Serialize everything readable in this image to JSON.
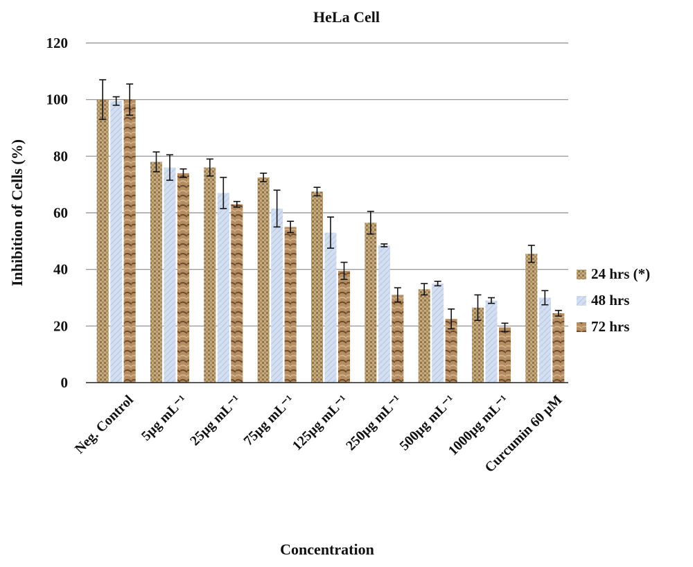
{
  "chart_data": {
    "type": "bar",
    "title": "HeLa Cell",
    "xlabel": "Concentration",
    "ylabel": "Inhibition of Cells (%)",
    "ylim": [
      0,
      120
    ],
    "yticks": [
      0,
      20,
      40,
      60,
      80,
      100,
      120
    ],
    "grid": true,
    "legend_position": "right",
    "categories": [
      "Neg. Control",
      "5µg mL⁻¹",
      "25µg mL⁻¹",
      "75µg mL⁻¹",
      "125µg mL⁻¹",
      "250µg mL⁻¹",
      "500µg mL⁻¹",
      "1000µg mL⁻¹",
      "Curcumin 60 µM"
    ],
    "series": [
      {
        "name": "24 hrs (*)",
        "color": "#b89a6c",
        "values": [
          100,
          78,
          76,
          72.5,
          67.5,
          56.5,
          33,
          26.5,
          45.5
        ],
        "errors": [
          7,
          3.5,
          3,
          1.5,
          1.5,
          4,
          2,
          4.5,
          3
        ]
      },
      {
        "name": "48 hrs",
        "color": "#cdd9ee",
        "values": [
          99.5,
          76,
          67,
          61.5,
          53,
          48.5,
          35,
          29,
          30
        ],
        "errors": [
          1.5,
          4.5,
          5.5,
          6.5,
          5.5,
          0.5,
          0.8,
          1,
          2.5
        ]
      },
      {
        "name": "72 hrs",
        "color": "#a07a52",
        "values": [
          100,
          74,
          63,
          55,
          39.5,
          31,
          22.5,
          19.5,
          24.5
        ],
        "errors": [
          5.5,
          1.5,
          1,
          2,
          3,
          2.5,
          3.5,
          1.5,
          1
        ]
      }
    ]
  }
}
